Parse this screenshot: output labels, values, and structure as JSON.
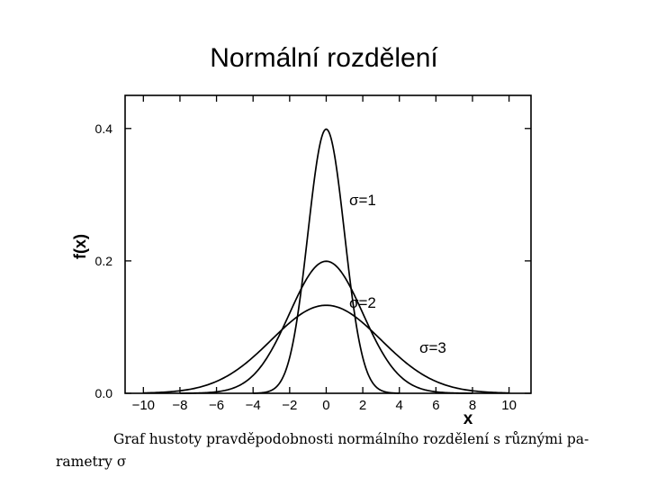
{
  "slide": {
    "title": "Normální rozdělení",
    "caption_line1": "Graf hustoty pravděpodobnosti normálního rozdělení s různými pa-",
    "caption_line2": "rametry σ"
  },
  "chart_data": {
    "type": "line",
    "title": "",
    "xlabel": "x",
    "ylabel": "f(x)",
    "xlim": [
      -11,
      11.2
    ],
    "ylim": [
      0,
      0.45
    ],
    "xticks": [
      -10,
      -8,
      -6,
      -4,
      -2,
      0,
      2,
      4,
      6,
      8,
      10
    ],
    "yticks": [
      0.0,
      0.2,
      0.4
    ],
    "ytick_labels": [
      "0.0",
      "0.2",
      "0.4"
    ],
    "grid": false,
    "line_color": "#000000",
    "series": [
      {
        "name": "σ=1",
        "mean": 0,
        "sigma": 1,
        "x_range": [
          -4,
          4
        ]
      },
      {
        "name": "σ=2",
        "mean": 0,
        "sigma": 2,
        "x_range": [
          -8,
          8
        ]
      },
      {
        "name": "σ=3",
        "mean": 0,
        "sigma": 3,
        "x_range": [
          -10,
          10
        ]
      }
    ]
  }
}
